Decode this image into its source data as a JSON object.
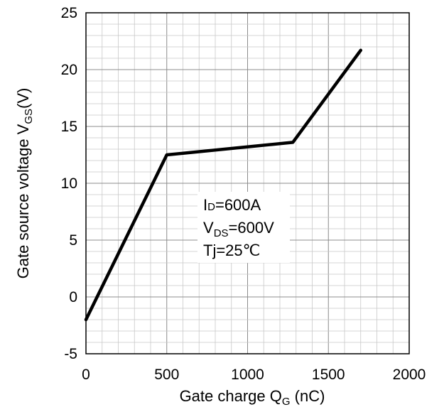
{
  "chart_data": {
    "type": "line",
    "xlabel": {
      "main": "Gate charge Q",
      "sub": "G",
      "unit": " (nC)"
    },
    "ylabel": {
      "main": "Gate source voltage V",
      "sub": "GS",
      "unit": "(V)"
    },
    "xlim": [
      0,
      2000
    ],
    "ylim": [
      -5,
      25
    ],
    "x_ticks": [
      0,
      500,
      1000,
      1500,
      2000
    ],
    "y_ticks": [
      -5,
      0,
      5,
      10,
      15,
      20,
      25
    ],
    "x_tick_labels": [
      "0",
      "500",
      "1000",
      "1500",
      "2000"
    ],
    "y_tick_labels": [
      "-5",
      "0",
      "5",
      "10",
      "15",
      "20",
      "25"
    ],
    "x_minor_step": 100,
    "y_minor_step": 1,
    "grid": true,
    "series": [
      {
        "x": [
          0,
          500,
          1280,
          1700
        ],
        "y": [
          -2,
          12.5,
          13.6,
          21.7
        ],
        "color": "#000000"
      }
    ],
    "annotations": {
      "id": {
        "main": "I",
        "sub": "D",
        "rest": "=600A"
      },
      "vds": {
        "main": "V",
        "sub": "DS",
        "rest": "=600V"
      },
      "tj": {
        "text": "Tj=25℃"
      }
    }
  }
}
